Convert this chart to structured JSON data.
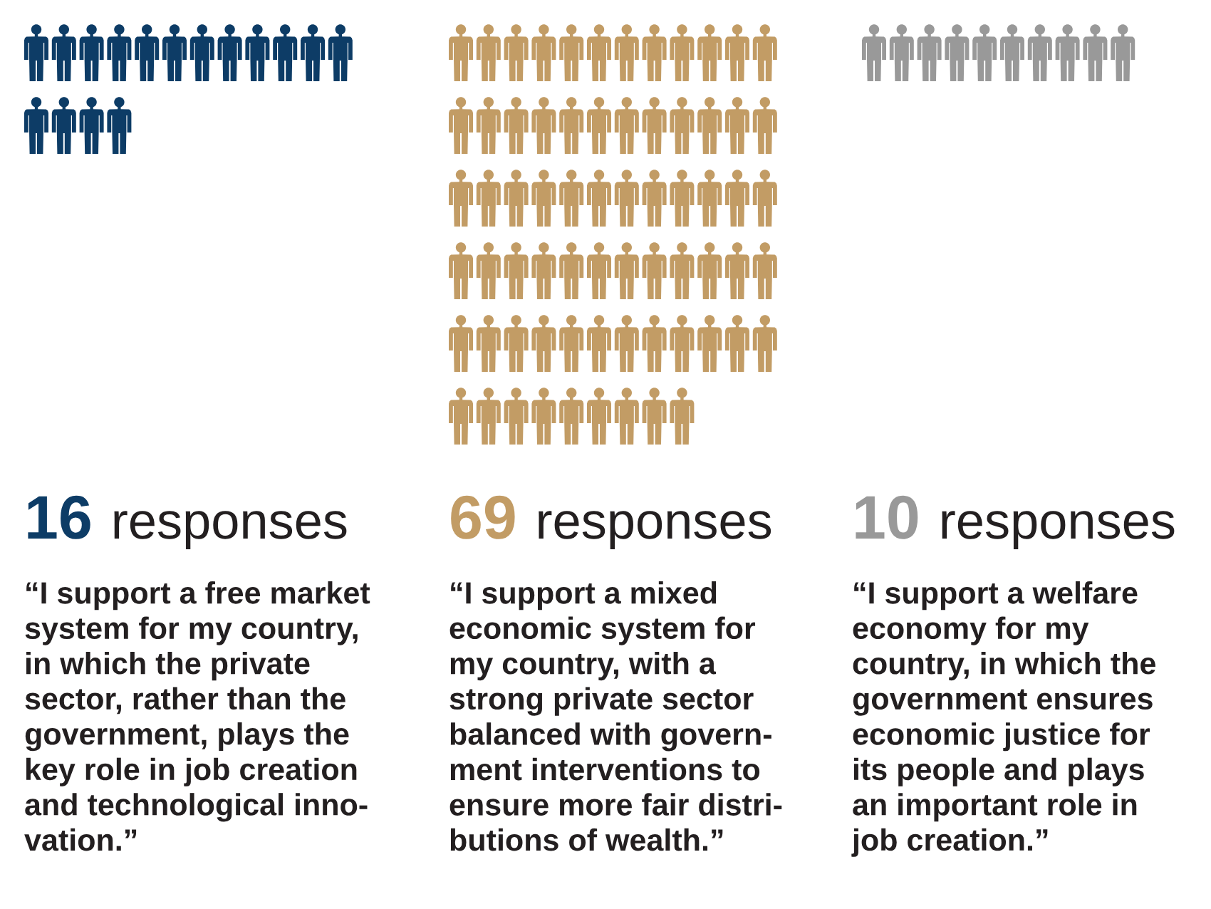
{
  "chart_data": {
    "type": "other",
    "categories": [
      "“I support a free market\nsystem for my country,\nin which the private\nsector, rather than the\ngovernment, plays the\nkey role in job creation\nand technological inno-\nvation.”",
      "“I support a mixed\neconomic system for\nmy country, with a\nstrong private sector\nbalanced with govern-\nment interventions to\nensure more fair distri-\nbutions of wealth.”",
      "“I support a welfare\neconomy for my\ncountry, in which the\ngovernment ensures\neconomic justice for\nits people and plays\nan important role in\njob creation.”"
    ],
    "values": [
      16,
      69,
      10
    ],
    "colors": [
      "#0d3c66",
      "#c29c65",
      "#999999"
    ],
    "value_labels": [
      "16 responses",
      "69 responses",
      "10 responses"
    ]
  }
}
